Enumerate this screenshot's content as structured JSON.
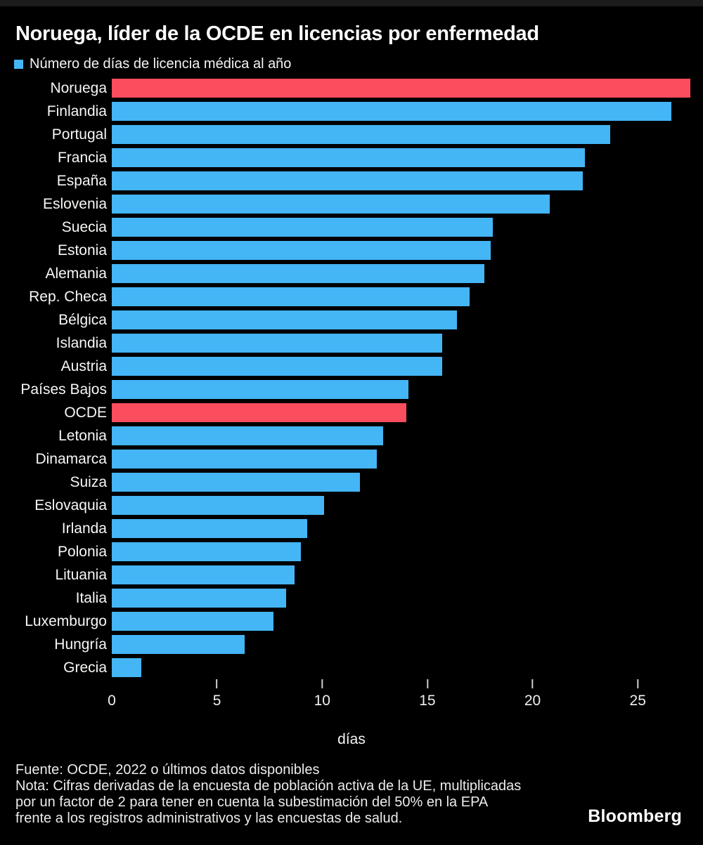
{
  "header": {
    "title": "Noruega, líder de la OCDE en licencias por enfermedad",
    "legend_label": "Número de días de licencia médica al año"
  },
  "colors": {
    "background": "#000000",
    "bar_default": "#44b5f5",
    "bar_highlight": "#fa4d5e",
    "text": "#ffffff"
  },
  "chart_data": {
    "type": "bar",
    "orientation": "horizontal",
    "title": "Noruega, líder de la OCDE en licencias por enfermedad",
    "legend": [
      "Número de días de licencia médica al año"
    ],
    "legend_position": "top-left",
    "grid": false,
    "xlabel": "días",
    "ylabel": "",
    "xlim": [
      0,
      28.1
    ],
    "x_ticks": [
      0,
      5,
      10,
      15,
      20,
      25
    ],
    "categories": [
      "Noruega",
      "Finlandia",
      "Portugal",
      "Francia",
      "España",
      "Eslovenia",
      "Suecia",
      "Estonia",
      "Alemania",
      "Rep. Checa",
      "Bélgica",
      "Islandia",
      "Austria",
      "Países Bajos",
      "OCDE",
      "Letonia",
      "Dinamarca",
      "Suiza",
      "Eslovaquia",
      "Irlanda",
      "Polonia",
      "Lituania",
      "Italia",
      "Luxemburgo",
      "Hungría",
      "Grecia"
    ],
    "values": [
      27.5,
      26.6,
      23.7,
      22.5,
      22.4,
      20.8,
      18.1,
      18.0,
      17.7,
      17.0,
      16.4,
      15.7,
      15.7,
      14.1,
      14.0,
      12.9,
      12.6,
      11.8,
      10.1,
      9.3,
      9.0,
      8.7,
      8.3,
      7.7,
      6.3,
      1.4
    ],
    "highlighted_categories": [
      "Noruega",
      "OCDE"
    ]
  },
  "axis": {
    "xlabel": "días"
  },
  "footer": {
    "source": "Fuente: OCDE, 2022 o últimos datos disponibles",
    "note_line1": "Nota: Cifras derivadas de la encuesta de población activa de la UE, multiplicadas",
    "note_line2": "por un factor de 2 para tener en cuenta la subestimación del 50% en la EPA",
    "note_line3": "frente a los registros administrativos y las encuestas de salud.",
    "brand": "Bloomberg"
  }
}
